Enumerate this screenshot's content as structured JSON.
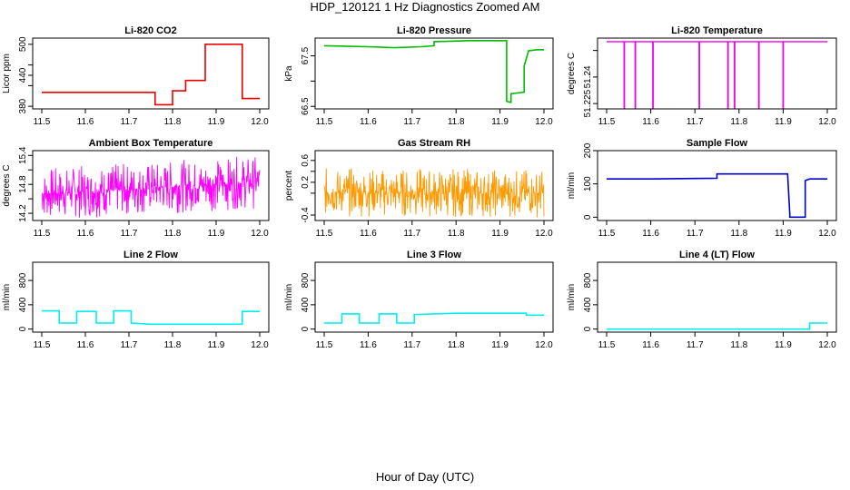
{
  "page": {
    "title": "HDP_120121  1 Hz Diagnostics Zoomed AM",
    "xlabel": "Hour of Day (UTC)"
  },
  "chart_data": [
    {
      "id": "co2",
      "type": "line",
      "title": "Li-820 CO2",
      "ylabel": "Licor ppm",
      "xlim": [
        11.5,
        12.0
      ],
      "ylim": [
        375,
        512
      ],
      "xticks": [
        "11.5",
        "11.6",
        "11.7",
        "11.8",
        "11.9",
        "12.0"
      ],
      "yticks": [
        380,
        440,
        500
      ],
      "yticks_top": [
        420,
        460
      ],
      "color": "#ee0000",
      "series": [
        {
          "x": [
            11.5,
            11.76,
            11.76,
            11.8,
            11.8,
            11.83,
            11.83,
            11.875,
            11.875,
            11.96,
            11.96,
            12.0
          ],
          "y": [
            407,
            407,
            383,
            383,
            410,
            410,
            430,
            430,
            500,
            500,
            395,
            395
          ]
        }
      ]
    },
    {
      "id": "pressure",
      "type": "line",
      "title": "Li-820 Pressure",
      "ylabel": "kPa",
      "xlim": [
        11.5,
        12.0
      ],
      "ylim": [
        66.45,
        67.85
      ],
      "xticks": [
        "11.5",
        "11.6",
        "11.7",
        "11.8",
        "11.9",
        "12.0"
      ],
      "yticks": [
        66.5,
        67.5
      ],
      "yticks_top": [
        67.0
      ],
      "color": "#00bb00",
      "series": [
        {
          "x": [
            11.5,
            11.6,
            11.66,
            11.72,
            11.75,
            11.75,
            11.83,
            11.915,
            11.915,
            11.925,
            11.925,
            11.955,
            11.955,
            11.965,
            11.985,
            12.0
          ],
          "y": [
            67.7,
            67.68,
            67.66,
            67.68,
            67.7,
            67.78,
            67.8,
            67.8,
            66.6,
            66.58,
            66.75,
            66.78,
            67.3,
            67.6,
            67.62,
            67.62
          ]
        }
      ]
    },
    {
      "id": "licor-temp",
      "type": "line",
      "title": "Li-820 Temperature",
      "ylabel": "degrees C",
      "xlim": [
        11.5,
        12.0
      ],
      "ylim": [
        51.222,
        51.262
      ],
      "xticks": [
        "11.5",
        "11.6",
        "11.7",
        "11.8",
        "11.9",
        "12.0"
      ],
      "yticks": [
        51.225,
        51.24
      ],
      "yticks_top": [
        51.255
      ],
      "color": "#ee00ee",
      "baseline": 51.26,
      "spikes": [
        11.54,
        11.565,
        11.605,
        11.71,
        11.775,
        11.79,
        11.845,
        11.9
      ]
    },
    {
      "id": "ambient-temp",
      "type": "line",
      "title": "Ambient Box Temperature",
      "ylabel": "degrees C",
      "xlim": [
        11.5,
        12.0
      ],
      "ylim": [
        14.05,
        15.5
      ],
      "xticks": [
        "11.5",
        "11.6",
        "11.7",
        "11.8",
        "11.9",
        "12.0"
      ],
      "yticks": [
        14.2,
        14.8,
        15.4
      ],
      "yticks_top": [
        14.5,
        15.1
      ],
      "color": "#ff00ff",
      "noise": {
        "center_start": 14.6,
        "center_end": 14.85,
        "amplitude": 0.55
      }
    },
    {
      "id": "rh",
      "type": "line",
      "title": "Gas Stream RH",
      "ylabel": "percent",
      "xlim": [
        11.5,
        12.0
      ],
      "ylim": [
        -0.5,
        0.78
      ],
      "xticks": [
        "11.5",
        "11.6",
        "11.7",
        "11.8",
        "11.9",
        "12.0"
      ],
      "yticks": [
        -0.4,
        0.2,
        0.6
      ],
      "yticks_top": [
        0.0,
        0.4
      ],
      "color": "#ff9900",
      "noise": {
        "center_start": 0.02,
        "center_end": 0.0,
        "amplitude": 0.45
      }
    },
    {
      "id": "sample-flow",
      "type": "line",
      "title": "Sample Flow",
      "ylabel": "ml/min",
      "xlim": [
        11.5,
        12.0
      ],
      "ylim": [
        -10,
        200
      ],
      "xticks": [
        "11.5",
        "11.6",
        "11.7",
        "11.8",
        "11.9",
        "12.0"
      ],
      "yticks": [
        0,
        100,
        200
      ],
      "color": "#0000cc",
      "series": [
        {
          "x": [
            11.5,
            11.6,
            11.75,
            11.75,
            11.91,
            11.915,
            11.915,
            11.95,
            11.95,
            11.96,
            12.0
          ],
          "y": [
            115,
            115,
            117,
            130,
            130,
            10,
            0,
            0,
            110,
            115,
            115
          ]
        }
      ]
    },
    {
      "id": "line2",
      "type": "line",
      "title": "Line 2 Flow",
      "ylabel": "ml/min",
      "xlim": [
        11.5,
        12.0
      ],
      "ylim": [
        -50,
        1100
      ],
      "xticks": [
        "11.5",
        "11.6",
        "11.7",
        "11.8",
        "11.9",
        "12.0"
      ],
      "yticks": [
        0,
        400,
        800
      ],
      "color": "#00eeee",
      "series": [
        {
          "x": [
            11.5,
            11.54,
            11.54,
            11.58,
            11.58,
            11.625,
            11.625,
            11.665,
            11.665,
            11.705,
            11.705,
            11.75,
            11.96,
            11.96,
            12.0
          ],
          "y": [
            300,
            300,
            100,
            100,
            290,
            290,
            100,
            100,
            300,
            300,
            100,
            80,
            80,
            290,
            290
          ]
        }
      ]
    },
    {
      "id": "line3",
      "type": "line",
      "title": "Line 3 Flow",
      "ylabel": "ml/min",
      "xlim": [
        11.5,
        12.0
      ],
      "ylim": [
        -50,
        1100
      ],
      "xticks": [
        "11.5",
        "11.6",
        "11.7",
        "11.8",
        "11.9",
        "12.0"
      ],
      "yticks": [
        0,
        400,
        800
      ],
      "color": "#00eeee",
      "series": [
        {
          "x": [
            11.5,
            11.54,
            11.54,
            11.58,
            11.58,
            11.625,
            11.625,
            11.665,
            11.665,
            11.705,
            11.705,
            11.8,
            11.96,
            11.96,
            12.0
          ],
          "y": [
            100,
            100,
            250,
            250,
            100,
            100,
            250,
            250,
            100,
            100,
            240,
            260,
            260,
            230,
            230
          ]
        }
      ]
    },
    {
      "id": "line4",
      "type": "line",
      "title": "Line 4 (LT) Flow",
      "ylabel": "ml/min",
      "xlim": [
        11.5,
        12.0
      ],
      "ylim": [
        -50,
        1100
      ],
      "xticks": [
        "11.5",
        "11.6",
        "11.7",
        "11.8",
        "11.9",
        "12.0"
      ],
      "yticks": [
        0,
        400,
        800
      ],
      "color": "#00eeee",
      "series": [
        {
          "x": [
            11.5,
            11.96,
            11.96,
            12.0
          ],
          "y": [
            0,
            0,
            100,
            100
          ]
        }
      ]
    }
  ]
}
